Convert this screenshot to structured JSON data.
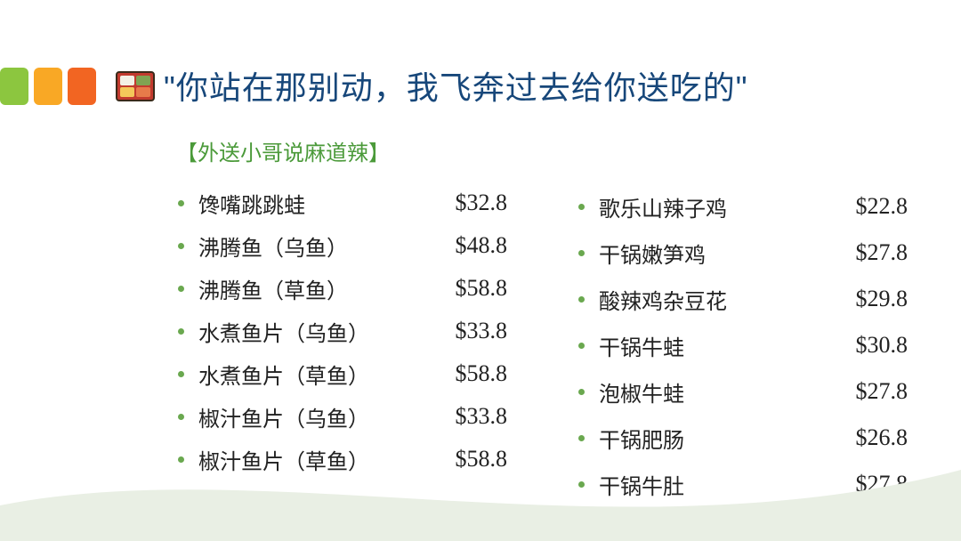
{
  "colors": {
    "title": "#17477a",
    "subtitle": "#4b9a3a",
    "bullet": "#6aa84f",
    "text": "#222222",
    "block_green": "#8cc63f",
    "block_orange1": "#f9a825",
    "block_orange2": "#f26522",
    "swoosh": "#e9efe4",
    "background": "#ffffff"
  },
  "title": "\"你站在那别动，我飞奔过去给你送吃的\"",
  "subtitle": "【外送小哥说麻道辣】",
  "menu": {
    "left": [
      {
        "name": "馋嘴跳跳蛙",
        "price": "$32.8"
      },
      {
        "name": "沸腾鱼（乌鱼）",
        "price": "$48.8"
      },
      {
        "name": "沸腾鱼（草鱼）",
        "price": "$58.8"
      },
      {
        "name": "水煮鱼片（乌鱼）",
        "price": "$33.8"
      },
      {
        "name": "水煮鱼片（草鱼）",
        "price": "$58.8"
      },
      {
        "name": "椒汁鱼片（乌鱼）",
        "price": "$33.8"
      },
      {
        "name": "椒汁鱼片（草鱼）",
        "price": "$58.8"
      }
    ],
    "right": [
      {
        "name": "歌乐山辣子鸡",
        "price": "$22.8"
      },
      {
        "name": "干锅嫩笋鸡",
        "price": "$27.8"
      },
      {
        "name": "酸辣鸡杂豆花",
        "price": "$29.8"
      },
      {
        "name": "干锅牛蛙",
        "price": "$30.8"
      },
      {
        "name": "泡椒牛蛙",
        "price": "$27.8"
      },
      {
        "name": "干锅肥肠",
        "price": "$26.8"
      },
      {
        "name": "干锅牛肚",
        "price": "$27.8"
      }
    ]
  }
}
